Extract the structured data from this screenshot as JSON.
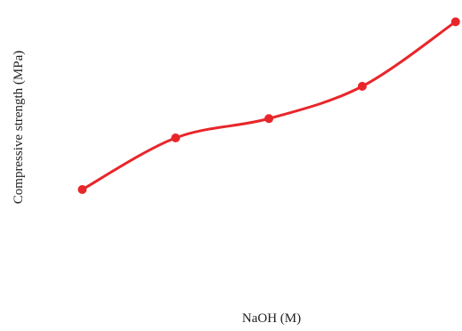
{
  "chart_data": {
    "type": "line",
    "title": "",
    "xlabel": "NaOH (M)",
    "ylabel": "Compressive strength (MPa)",
    "x": [
      1,
      2,
      3,
      4,
      5
    ],
    "series": [
      {
        "values": [
          30,
          42,
          46.5,
          54,
          69
        ],
        "color": "#e8262a"
      }
    ],
    "xlim": [
      0.5,
      5.05
    ],
    "ylim": [
      0,
      72
    ],
    "grid": false,
    "ticks_visible": false,
    "legend": "none"
  }
}
